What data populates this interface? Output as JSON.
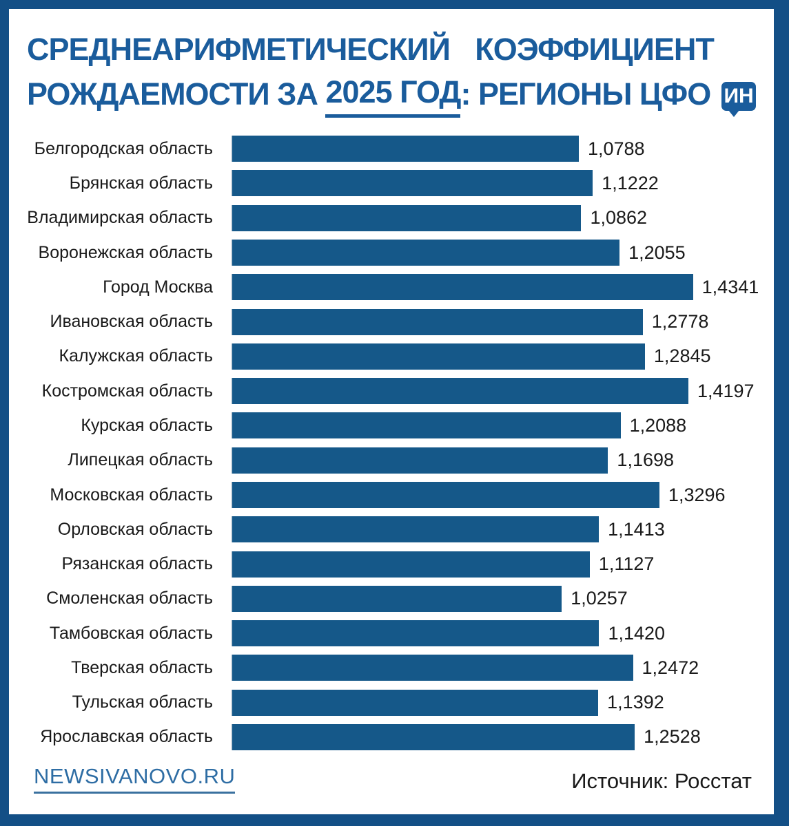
{
  "header": {
    "title_line1": "СРЕДНЕАРИФМЕТИЧЕСКИЙ КОЭФФИЦИЕНТ",
    "title_line2_prefix": "РОЖДАЕМОСТИ ЗА ",
    "title_line2_underlined": "2025 ГОД",
    "title_line2_suffix": ": РЕГИОНЫ ЦФО",
    "badge_label": "ИН"
  },
  "chart_data": {
    "type": "bar",
    "orientation": "horizontal",
    "title": "СРЕДНЕАРИФМЕТИЧЕСКИЙ КОЭФФИЦИЕНТ РОЖДАЕМОСТИ ЗА 2025 ГОД: РЕГИОНЫ ЦФО",
    "categories": [
      "Белгородская область",
      "Брянская область",
      "Владимирская область",
      "Воронежская область",
      "Город Москва",
      "Ивановская область",
      "Калужская область",
      "Костромская область",
      "Курская область",
      "Липецкая область",
      "Московская область",
      "Орловская область",
      "Рязанская область",
      "Смоленская область",
      "Тамбовская область",
      "Тверская область",
      "Тульская область",
      "Ярославская область"
    ],
    "values": [
      1.0788,
      1.1222,
      1.0862,
      1.2055,
      1.4341,
      1.2778,
      1.2845,
      1.4197,
      1.2088,
      1.1698,
      1.3296,
      1.1413,
      1.1127,
      1.0257,
      1.142,
      1.2472,
      1.1392,
      1.2528
    ],
    "value_labels": [
      "1,0788",
      "1,1222",
      "1,0862",
      "1,2055",
      "1,4341",
      "1,2778",
      "1,2845",
      "1,4197",
      "1,2088",
      "1,1698",
      "1,3296",
      "1,1413",
      "1,1127",
      "1,0257",
      "1,1420",
      "1,2472",
      "1,1392",
      "1,2528"
    ],
    "xlim": [
      0,
      1.63
    ],
    "grid": false,
    "legend": false,
    "bar_color": "#155889",
    "axis_line_color": "#ccd7df"
  },
  "footer": {
    "site_label": "NEWSIVANOVO.RU",
    "source_label": "Источник: Росстат"
  },
  "colors": {
    "frame": "#134f86",
    "title": "#1a5c9c",
    "bar": "#155889",
    "text": "#1a1a1a",
    "link": "#2e6da4",
    "badge_bg": "#1a5c9c",
    "badge_text": "#ffffff"
  }
}
